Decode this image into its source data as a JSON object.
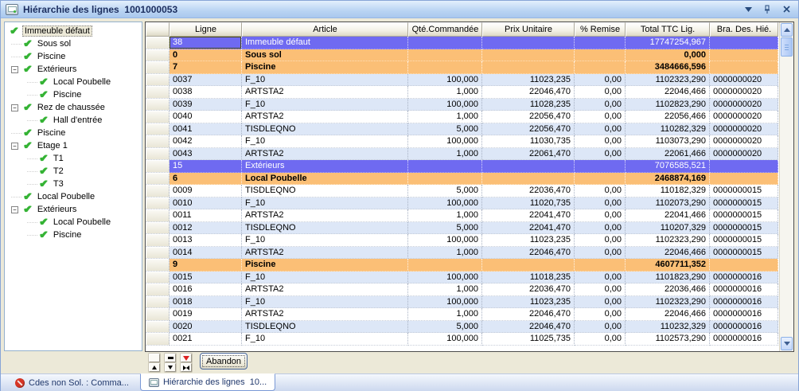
{
  "window": {
    "title": "Hiérarchie des lignes  1001000053"
  },
  "titlebar": {
    "buttons": [
      {
        "icon": "chevron-down-icon"
      },
      {
        "icon": "pin-icon"
      },
      {
        "icon": "close-icon"
      }
    ]
  },
  "tree": {
    "items": [
      {
        "label": "Immeuble défaut",
        "level": 0,
        "selected": true,
        "expandable": false
      },
      {
        "label": "Sous sol",
        "level": 1,
        "selected": false,
        "expandable": false
      },
      {
        "label": "Piscine",
        "level": 1,
        "selected": false,
        "expandable": false
      },
      {
        "label": "Extérieurs",
        "level": 1,
        "selected": false,
        "expandable": true
      },
      {
        "label": "Local Poubelle",
        "level": 2,
        "selected": false,
        "expandable": false
      },
      {
        "label": "Piscine",
        "level": 2,
        "selected": false,
        "expandable": false
      },
      {
        "label": "Rez de chaussée",
        "level": 1,
        "selected": false,
        "expandable": true
      },
      {
        "label": "Hall d'entrée",
        "level": 2,
        "selected": false,
        "expandable": false
      },
      {
        "label": "Piscine",
        "level": 1,
        "selected": false,
        "expandable": false
      },
      {
        "label": "Etage 1",
        "level": 1,
        "selected": false,
        "expandable": true
      },
      {
        "label": "T1",
        "level": 2,
        "selected": false,
        "expandable": false
      },
      {
        "label": "T2",
        "level": 2,
        "selected": false,
        "expandable": false
      },
      {
        "label": "T3",
        "level": 2,
        "selected": false,
        "expandable": false
      },
      {
        "label": "Local Poubelle",
        "level": 1,
        "selected": false,
        "expandable": false
      },
      {
        "label": "Extérieurs",
        "level": 1,
        "selected": false,
        "expandable": true
      },
      {
        "label": "Local Poubelle",
        "level": 2,
        "selected": false,
        "expandable": false
      },
      {
        "label": "Piscine",
        "level": 2,
        "selected": false,
        "expandable": false
      }
    ]
  },
  "table": {
    "columns": [
      "",
      "Ligne",
      "Article",
      "Qté.Commandée",
      "Prix Unitaire",
      "% Remise",
      "Total TTC Lig.",
      "Bra. Des. Hié."
    ],
    "rows": [
      {
        "ligne": "38",
        "article": "Immeuble défaut",
        "qte": "",
        "prix": "",
        "remise": "",
        "total": "17747254,967",
        "bra": "",
        "style": "sel",
        "focus": true
      },
      {
        "ligne": "0",
        "article": "Sous sol",
        "qte": "",
        "prix": "",
        "remise": "",
        "total": "0,000",
        "bra": "",
        "style": "group"
      },
      {
        "ligne": "7",
        "article": "Piscine",
        "qte": "",
        "prix": "",
        "remise": "",
        "total": "3484666,596",
        "bra": "",
        "style": "group"
      },
      {
        "ligne": "0037",
        "article": "F_10",
        "qte": "100,000",
        "prix": "11023,235",
        "remise": "0,00",
        "total": "1102323,290",
        "bra": "0000000020",
        "style": "blue"
      },
      {
        "ligne": "0038",
        "article": "ARTSTA2",
        "qte": "1,000",
        "prix": "22046,470",
        "remise": "0,00",
        "total": "22046,466",
        "bra": "0000000020",
        "style": "white"
      },
      {
        "ligne": "0039",
        "article": "F_10",
        "qte": "100,000",
        "prix": "11028,235",
        "remise": "0,00",
        "total": "1102823,290",
        "bra": "0000000020",
        "style": "blue"
      },
      {
        "ligne": "0040",
        "article": "ARTSTA2",
        "qte": "1,000",
        "prix": "22056,470",
        "remise": "0,00",
        "total": "22056,466",
        "bra": "0000000020",
        "style": "white"
      },
      {
        "ligne": "0041",
        "article": "TISDLEQNO",
        "qte": "5,000",
        "prix": "22056,470",
        "remise": "0,00",
        "total": "110282,329",
        "bra": "0000000020",
        "style": "blue"
      },
      {
        "ligne": "0042",
        "article": "F_10",
        "qte": "100,000",
        "prix": "11030,735",
        "remise": "0,00",
        "total": "1103073,290",
        "bra": "0000000020",
        "style": "white"
      },
      {
        "ligne": "0043",
        "article": "ARTSTA2",
        "qte": "1,000",
        "prix": "22061,470",
        "remise": "0,00",
        "total": "22061,466",
        "bra": "0000000020",
        "style": "blue"
      },
      {
        "ligne": "15",
        "article": "Extérieurs",
        "qte": "",
        "prix": "",
        "remise": "",
        "total": "7076585,521",
        "bra": "",
        "style": "sel"
      },
      {
        "ligne": "6",
        "article": "Local Poubelle",
        "qte": "",
        "prix": "",
        "remise": "",
        "total": "2468874,169",
        "bra": "",
        "style": "group"
      },
      {
        "ligne": "0009",
        "article": "TISDLEQNO",
        "qte": "5,000",
        "prix": "22036,470",
        "remise": "0,00",
        "total": "110182,329",
        "bra": "0000000015",
        "style": "white"
      },
      {
        "ligne": "0010",
        "article": "F_10",
        "qte": "100,000",
        "prix": "11020,735",
        "remise": "0,00",
        "total": "1102073,290",
        "bra": "0000000015",
        "style": "blue"
      },
      {
        "ligne": "0011",
        "article": "ARTSTA2",
        "qte": "1,000",
        "prix": "22041,470",
        "remise": "0,00",
        "total": "22041,466",
        "bra": "0000000015",
        "style": "white"
      },
      {
        "ligne": "0012",
        "article": "TISDLEQNO",
        "qte": "5,000",
        "prix": "22041,470",
        "remise": "0,00",
        "total": "110207,329",
        "bra": "0000000015",
        "style": "blue"
      },
      {
        "ligne": "0013",
        "article": "F_10",
        "qte": "100,000",
        "prix": "11023,235",
        "remise": "0,00",
        "total": "1102323,290",
        "bra": "0000000015",
        "style": "white"
      },
      {
        "ligne": "0014",
        "article": "ARTSTA2",
        "qte": "1,000",
        "prix": "22046,470",
        "remise": "0,00",
        "total": "22046,466",
        "bra": "0000000015",
        "style": "blue"
      },
      {
        "ligne": "9",
        "article": "Piscine",
        "qte": "",
        "prix": "",
        "remise": "",
        "total": "4607711,352",
        "bra": "",
        "style": "group"
      },
      {
        "ligne": "0015",
        "article": "F_10",
        "qte": "100,000",
        "prix": "11018,235",
        "remise": "0,00",
        "total": "1101823,290",
        "bra": "0000000016",
        "style": "blue"
      },
      {
        "ligne": "0016",
        "article": "ARTSTA2",
        "qte": "1,000",
        "prix": "22036,470",
        "remise": "0,00",
        "total": "22036,466",
        "bra": "0000000016",
        "style": "white"
      },
      {
        "ligne": "0018",
        "article": "F_10",
        "qte": "100,000",
        "prix": "11023,235",
        "remise": "0,00",
        "total": "1102323,290",
        "bra": "0000000016",
        "style": "blue"
      },
      {
        "ligne": "0019",
        "article": "ARTSTA2",
        "qte": "1,000",
        "prix": "22046,470",
        "remise": "0,00",
        "total": "22046,466",
        "bra": "0000000016",
        "style": "white"
      },
      {
        "ligne": "0020",
        "article": "TISDLEQNO",
        "qte": "5,000",
        "prix": "22046,470",
        "remise": "0,00",
        "total": "110232,329",
        "bra": "0000000016",
        "style": "blue"
      },
      {
        "ligne": "0021",
        "article": "F_10",
        "qte": "100,000",
        "prix": "11025,735",
        "remise": "0,00",
        "total": "1102573,290",
        "bra": "0000000016",
        "style": "white"
      }
    ]
  },
  "controls": {
    "abandon_label": "Abandon",
    "nav_buttons": [
      {
        "name": "blank-nav-button",
        "glyph": "blank"
      },
      {
        "name": "bar-nav-button",
        "glyph": "bar"
      },
      {
        "name": "red-triangle-nav-button",
        "glyph": "reddown"
      },
      {
        "name": "up-arrow-nav-button",
        "glyph": "up"
      },
      {
        "name": "down-arrow-nav-button",
        "glyph": "down"
      },
      {
        "name": "collapse-nav-button",
        "glyph": "collapse"
      }
    ]
  },
  "tabs": [
    {
      "label": "Cdes non Sol. : Comma...",
      "icon": "prohibition-icon",
      "active": false
    },
    {
      "label": "Hiérarchie des lignes  10...",
      "icon": "form-icon",
      "active": true
    }
  ],
  "colors": {
    "selected_row": "#6f6af1",
    "group_row": "#fbbf76",
    "alt_row": "#dde7f7",
    "titlebar_text": "#1b2d5e"
  }
}
